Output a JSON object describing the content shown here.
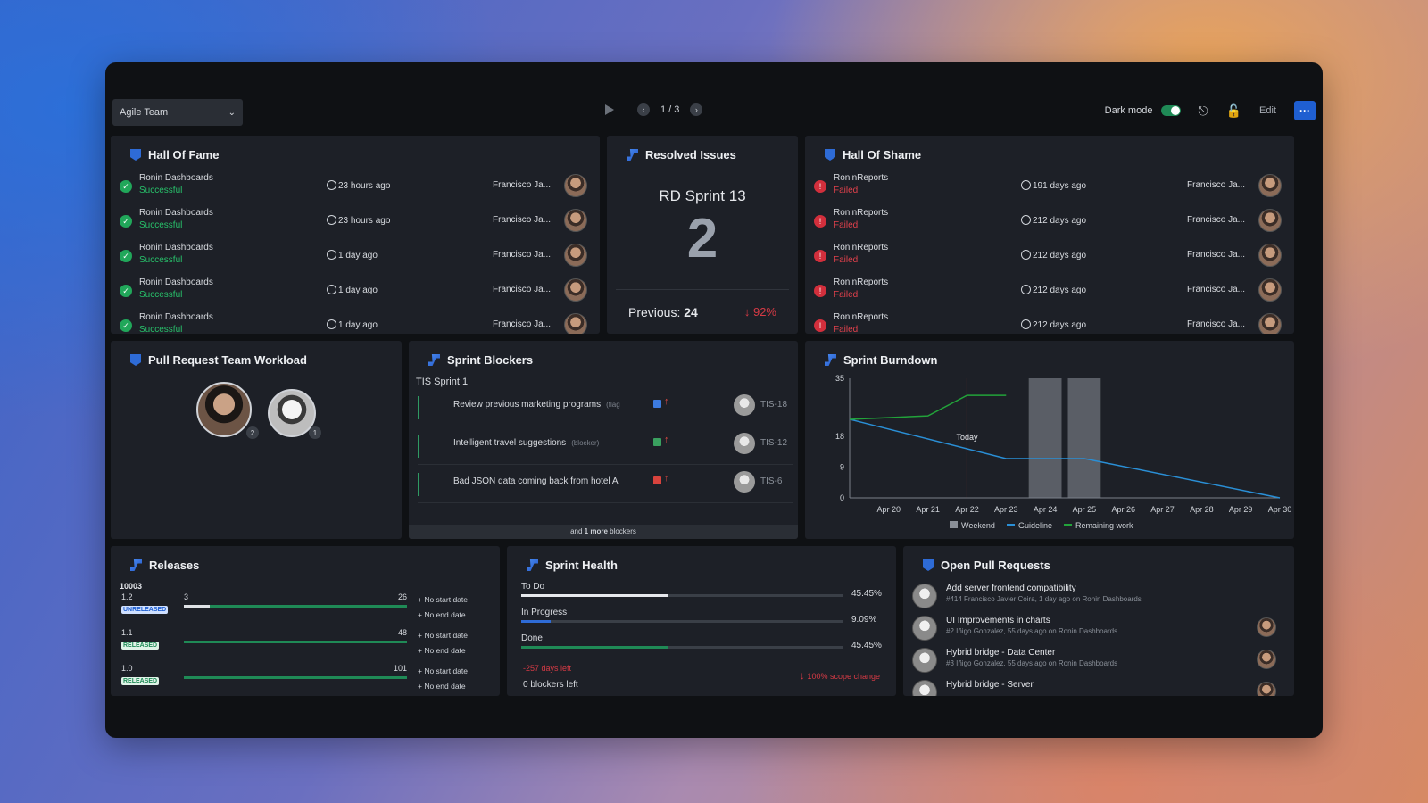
{
  "toolbar": {
    "team_select": "Agile Team",
    "page_indicator": "1 / 3",
    "dark_mode_label": "Dark mode",
    "edit_label": "Edit",
    "more_label": "···"
  },
  "hall_of_fame": {
    "title": "Hall Of Fame",
    "rows": [
      {
        "name": "Ronin Dashboards",
        "status": "Successful",
        "time": "23 hours ago",
        "user": "Francisco Ja..."
      },
      {
        "name": "Ronin Dashboards",
        "status": "Successful",
        "time": "23 hours ago",
        "user": "Francisco Ja..."
      },
      {
        "name": "Ronin Dashboards",
        "status": "Successful",
        "time": "1 day ago",
        "user": "Francisco Ja..."
      },
      {
        "name": "Ronin Dashboards",
        "status": "Successful",
        "time": "1 day ago",
        "user": "Francisco Ja..."
      },
      {
        "name": "Ronin Dashboards",
        "status": "Successful",
        "time": "1 day ago",
        "user": "Francisco Ja..."
      }
    ]
  },
  "resolved_issues": {
    "title": "Resolved Issues",
    "sprint": "RD Sprint 13",
    "value": "2",
    "previous_label": "Previous:",
    "previous_value": "24",
    "change": "92%"
  },
  "hall_of_shame": {
    "title": "Hall Of Shame",
    "rows": [
      {
        "name": "RoninReports",
        "status": "Failed",
        "time": "191 days ago",
        "user": "Francisco Ja..."
      },
      {
        "name": "RoninReports",
        "status": "Failed",
        "time": "212 days ago",
        "user": "Francisco Ja..."
      },
      {
        "name": "RoninReports",
        "status": "Failed",
        "time": "212 days ago",
        "user": "Francisco Ja..."
      },
      {
        "name": "RoninReports",
        "status": "Failed",
        "time": "212 days ago",
        "user": "Francisco Ja..."
      },
      {
        "name": "RoninReports",
        "status": "Failed",
        "time": "212 days ago",
        "user": "Francisco Ja..."
      }
    ]
  },
  "workload": {
    "title": "Pull Request Team Workload",
    "counts": [
      "2",
      "1"
    ]
  },
  "blockers": {
    "title": "Sprint Blockers",
    "sprint": "TIS Sprint 1",
    "rows": [
      {
        "title": "Review previous marketing programs",
        "tag": "(flag",
        "key": "TIS-18",
        "icon_color": "#3d7be0"
      },
      {
        "title": "Intelligent travel suggestions",
        "tag": "(blocker)",
        "key": "TIS-12",
        "icon_color": "#3aa05f"
      },
      {
        "title": "Bad JSON data coming back from hotel A",
        "tag": "",
        "key": "TIS-6",
        "icon_color": "#d8433d"
      }
    ],
    "more_prefix": "and",
    "more_count": "1 more",
    "more_suffix": "blockers"
  },
  "burndown": {
    "title": "Sprint Burndown",
    "today_label": "Today",
    "legend": [
      "Weekend",
      "Guideline",
      "Remaining work"
    ]
  },
  "chart_data": {
    "type": "line",
    "title": "Sprint Burndown",
    "x": [
      "Apr 19",
      "Apr 20",
      "Apr 21",
      "Apr 22",
      "Apr 23",
      "Apr 24",
      "Apr 25",
      "Apr 26",
      "Apr 27",
      "Apr 28",
      "Apr 29",
      "Apr 30"
    ],
    "xticks": [
      "Apr 20",
      "Apr 21",
      "Apr 22",
      "Apr 23",
      "Apr 24",
      "Apr 25",
      "Apr 26",
      "Apr 27",
      "Apr 28",
      "Apr 29",
      "Apr 30"
    ],
    "yticks": [
      0,
      9,
      18,
      35
    ],
    "ylim": [
      0,
      35
    ],
    "series": [
      {
        "name": "Guideline",
        "color": "#2a8fd6",
        "x": [
          "Apr 19",
          "Apr 23",
          "Apr 24",
          "Apr 25",
          "Apr 30"
        ],
        "values": [
          23,
          11.5,
          11.5,
          11.5,
          0
        ]
      },
      {
        "name": "Remaining work",
        "color": "#22a33a",
        "x": [
          "Apr 19",
          "Apr 21",
          "Apr 22",
          "Apr 23"
        ],
        "values": [
          23,
          24,
          30,
          30
        ]
      }
    ],
    "weekend_bands": [
      [
        "Apr 24",
        "Apr 24"
      ],
      [
        "Apr 25",
        "Apr 25"
      ]
    ],
    "today": "Apr 22"
  },
  "releases": {
    "title": "Releases",
    "project_id": "10003",
    "rows": [
      {
        "version": "1.2",
        "badge": "UNRELEASED",
        "done": "3",
        "total": "26",
        "progress": 0.115,
        "start": "No start date",
        "end": "No end date"
      },
      {
        "version": "1.1",
        "badge": "RELEASED",
        "done": "",
        "total": "48",
        "progress": 0,
        "start": "No start date",
        "end": "No end date"
      },
      {
        "version": "1.0",
        "badge": "RELEASED",
        "done": "",
        "total": "101",
        "progress": 0,
        "start": "No start date",
        "end": "No end date"
      }
    ]
  },
  "sprint_health": {
    "title": "Sprint Health",
    "rows": [
      {
        "label": "To Do",
        "pct": "45.45%",
        "fraction": 0.4545,
        "color": "#e6e8ec"
      },
      {
        "label": "In Progress",
        "pct": "9.09%",
        "fraction": 0.0909,
        "color": "#2e6bd6"
      },
      {
        "label": "Done",
        "pct": "45.45%",
        "fraction": 0.4545,
        "color": "#1f8a56"
      }
    ],
    "days_left": "-257 days left",
    "blockers_left": "0 blockers left",
    "scope_change": "100% scope change"
  },
  "open_prs": {
    "title": "Open Pull Requests",
    "rows": [
      {
        "title": "Add server frontend compatibility",
        "meta": "#414 Francisco Javier Coira, 1 day ago on Ronin Dashboards",
        "has_reviewer": false
      },
      {
        "title": "UI Improvements in charts",
        "meta": "#2 Iñigo Gonzalez, 55 days ago on Ronin Dashboards",
        "has_reviewer": true
      },
      {
        "title": "Hybrid bridge - Data Center",
        "meta": "#3 Iñigo Gonzalez, 55 days ago on Ronin Dashboards",
        "has_reviewer": true
      },
      {
        "title": "Hybrid bridge - Server",
        "meta": "",
        "has_reviewer": true
      }
    ]
  }
}
